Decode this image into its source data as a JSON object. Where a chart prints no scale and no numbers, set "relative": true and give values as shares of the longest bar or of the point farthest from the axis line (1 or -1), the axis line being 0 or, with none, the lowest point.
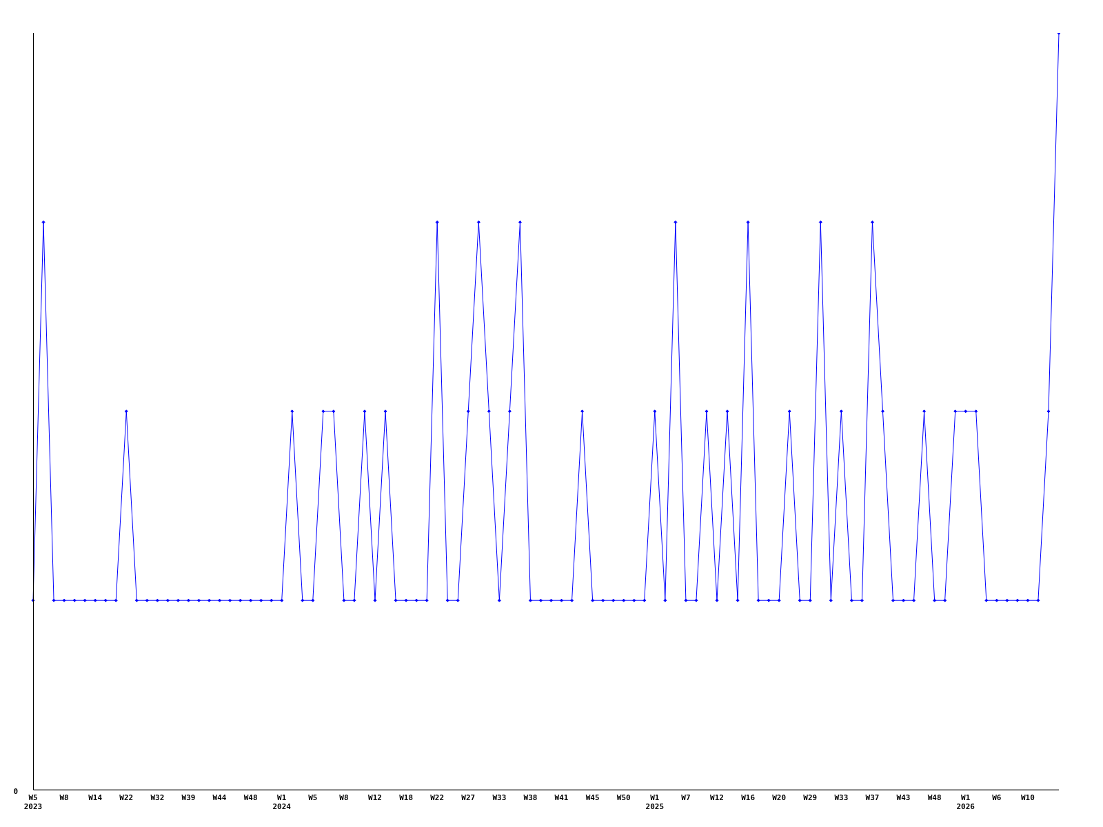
{
  "chart_data": {
    "type": "line",
    "relative": true,
    "color": "#0000ff",
    "marker": "diamond",
    "grid": false,
    "legend": false,
    "annotations": [
      "0"
    ],
    "categories": [
      "W5\n2023",
      null,
      null,
      "W8",
      null,
      null,
      "W14",
      null,
      null,
      "W22",
      null,
      null,
      "W32",
      null,
      null,
      "W39",
      null,
      null,
      "W44",
      null,
      null,
      "W48",
      null,
      null,
      "W1\n2024",
      null,
      null,
      "W5",
      null,
      null,
      "W8",
      null,
      null,
      "W12",
      null,
      null,
      "W18",
      null,
      null,
      "W22",
      null,
      null,
      "W27",
      null,
      null,
      "W33",
      null,
      null,
      "W38",
      null,
      null,
      "W41",
      null,
      null,
      "W45",
      null,
      null,
      "W50",
      null,
      null,
      "W1\n2025",
      null,
      null,
      "W7",
      null,
      null,
      "W12",
      null,
      null,
      "W16",
      null,
      null,
      "W20",
      null,
      null,
      "W29",
      null,
      null,
      "W33",
      null,
      null,
      "W37",
      null,
      null,
      "W43",
      null,
      null,
      "W48",
      null,
      null,
      "W1\n2026",
      null,
      null,
      "W6",
      null,
      null,
      "W10",
      null,
      null,
      null
    ],
    "values": [
      0.25,
      0.75,
      0.25,
      0.25,
      0.25,
      0.25,
      0.25,
      0.25,
      0.25,
      0.5,
      0.25,
      0.25,
      0.25,
      0.25,
      0.25,
      0.25,
      0.25,
      0.25,
      0.25,
      0.25,
      0.25,
      0.25,
      0.25,
      0.25,
      0.25,
      0.5,
      0.25,
      0.25,
      0.5,
      0.5,
      0.25,
      0.25,
      0.5,
      0.25,
      0.5,
      0.25,
      0.25,
      0.25,
      0.25,
      0.75,
      0.25,
      0.25,
      0.5,
      0.75,
      0.5,
      0.25,
      0.5,
      0.75,
      0.25,
      0.25,
      0.25,
      0.25,
      0.25,
      0.5,
      0.25,
      0.25,
      0.25,
      0.25,
      0.25,
      0.25,
      0.5,
      0.25,
      0.75,
      0.25,
      0.25,
      0.5,
      0.25,
      0.5,
      0.25,
      0.75,
      0.25,
      0.25,
      0.25,
      0.5,
      0.25,
      0.25,
      0.75,
      0.25,
      0.5,
      0.25,
      0.25,
      0.75,
      0.5,
      0.25,
      0.25,
      0.25,
      0.5,
      0.25,
      0.25,
      0.5,
      0.5,
      0.5,
      0.25,
      0.25,
      0.25,
      0.25,
      0.25,
      0.25,
      0.5,
      1
    ]
  }
}
